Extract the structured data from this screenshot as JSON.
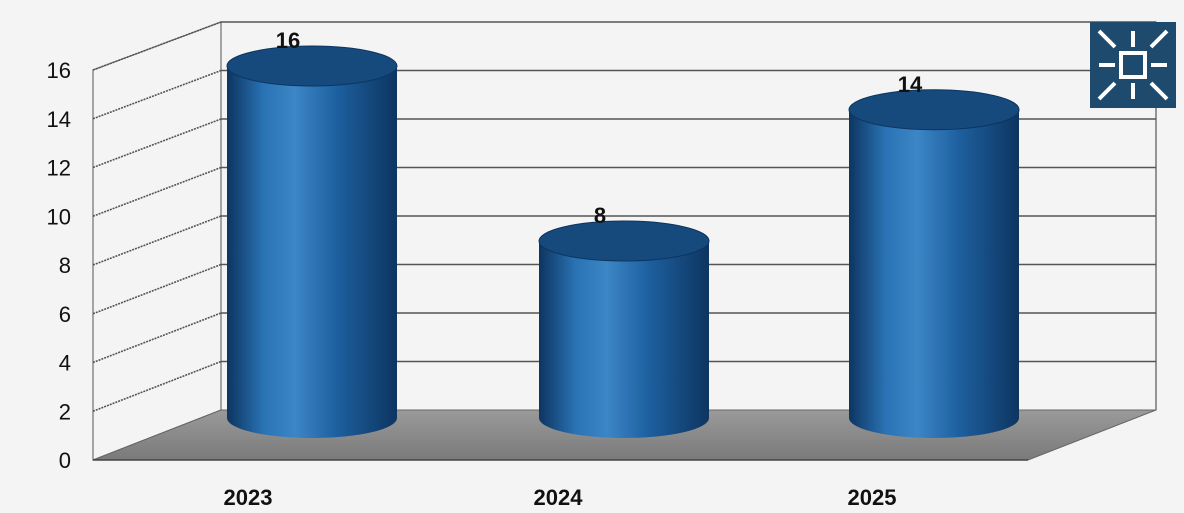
{
  "chart_data": {
    "type": "bar",
    "style": "3d-cylinder",
    "categories": [
      "2023",
      "2024",
      "2025"
    ],
    "values": [
      16,
      8,
      14
    ],
    "data_labels": [
      "16",
      "8",
      "14"
    ],
    "y_ticks": [
      0,
      2,
      4,
      6,
      8,
      10,
      12,
      14,
      16
    ],
    "ylim": [
      0,
      16
    ],
    "grid": true,
    "legend": "none",
    "colors": {
      "bar": "#1d5f9e",
      "bar_dark": "#0d3560",
      "bar_light": "#3c86c6",
      "bar_top": "#164a7c",
      "floor": "#8c8c8c",
      "gridline": "#555555",
      "background": "#f4f4f4",
      "logo_bg": "#1e4a6e",
      "logo_fg": "#ffffff"
    }
  },
  "logo": {
    "icon": "sun-burst-logo-icon"
  }
}
